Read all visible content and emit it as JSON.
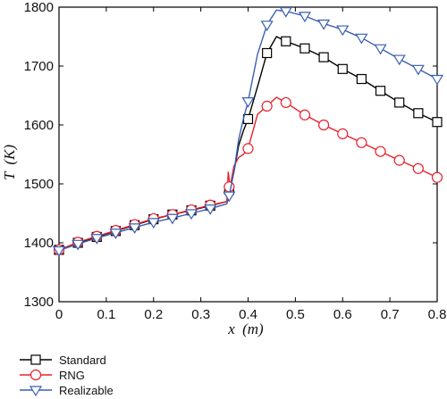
{
  "chart_data": {
    "type": "line",
    "title": "",
    "xlabel": "x",
    "xlabel_unit": "(m)",
    "ylabel": "T",
    "ylabel_unit": "(K)",
    "xlim": [
      0,
      0.8
    ],
    "ylim": [
      1300,
      1800
    ],
    "xticks": [
      "0",
      "0.1",
      "0.2",
      "0.3",
      "0.4",
      "0.5",
      "0.6",
      "0.7",
      "0.8"
    ],
    "yticks": [
      "1300",
      "1400",
      "1500",
      "1600",
      "1700",
      "1800"
    ],
    "grid": false,
    "legend_position": "bottom-left",
    "series": [
      {
        "name": "Standard",
        "color": "#000000",
        "marker": "square",
        "x": [
          0,
          0.04,
          0.08,
          0.12,
          0.16,
          0.2,
          0.24,
          0.28,
          0.32,
          0.355,
          0.36,
          0.37,
          0.38,
          0.39,
          0.4,
          0.42,
          0.44,
          0.46,
          0.48,
          0.52,
          0.56,
          0.6,
          0.64,
          0.68,
          0.72,
          0.76,
          0.8
        ],
        "y": [
          1388,
          1400,
          1410,
          1420,
          1430,
          1440,
          1448,
          1455,
          1463,
          1470,
          1490,
          1520,
          1565,
          1590,
          1610,
          1665,
          1722,
          1750,
          1742,
          1730,
          1715,
          1695,
          1678,
          1658,
          1638,
          1620,
          1605
        ],
        "markers_x": [
          0,
          0.04,
          0.08,
          0.12,
          0.16,
          0.2,
          0.24,
          0.28,
          0.32,
          0.36,
          0.4,
          0.44,
          0.48,
          0.52,
          0.56,
          0.6,
          0.64,
          0.68,
          0.72,
          0.76,
          0.8
        ],
        "markers_y": [
          1388,
          1400,
          1410,
          1420,
          1430,
          1440,
          1448,
          1455,
          1463,
          1490,
          1610,
          1722,
          1742,
          1730,
          1715,
          1695,
          1678,
          1658,
          1638,
          1620,
          1605
        ]
      },
      {
        "name": "RNG",
        "color": "#e8202a",
        "marker": "circle",
        "x": [
          0,
          0.04,
          0.08,
          0.12,
          0.16,
          0.2,
          0.24,
          0.28,
          0.32,
          0.355,
          0.358,
          0.362,
          0.37,
          0.38,
          0.39,
          0.4,
          0.42,
          0.44,
          0.46,
          0.48,
          0.52,
          0.56,
          0.6,
          0.64,
          0.68,
          0.72,
          0.76,
          0.8
        ],
        "y": [
          1388,
          1401,
          1411,
          1421,
          1431,
          1441,
          1448,
          1456,
          1464,
          1470,
          1520,
          1495,
          1530,
          1545,
          1550,
          1560,
          1618,
          1632,
          1647,
          1638,
          1617,
          1600,
          1585,
          1570,
          1555,
          1540,
          1526,
          1511
        ],
        "markers_x": [
          0,
          0.04,
          0.08,
          0.12,
          0.16,
          0.2,
          0.24,
          0.28,
          0.32,
          0.36,
          0.4,
          0.44,
          0.48,
          0.52,
          0.56,
          0.6,
          0.64,
          0.68,
          0.72,
          0.76,
          0.8
        ],
        "markers_y": [
          1388,
          1401,
          1411,
          1421,
          1431,
          1441,
          1448,
          1456,
          1464,
          1495,
          1560,
          1632,
          1638,
          1617,
          1600,
          1585,
          1570,
          1555,
          1540,
          1526,
          1511
        ]
      },
      {
        "name": "Realizable",
        "color": "#3a5fb0",
        "marker": "triangle-down",
        "x": [
          0,
          0.04,
          0.08,
          0.12,
          0.16,
          0.2,
          0.24,
          0.28,
          0.32,
          0.355,
          0.36,
          0.37,
          0.38,
          0.39,
          0.4,
          0.42,
          0.44,
          0.46,
          0.48,
          0.52,
          0.56,
          0.6,
          0.64,
          0.68,
          0.72,
          0.76,
          0.8
        ],
        "y": [
          1387,
          1398,
          1408,
          1417,
          1426,
          1435,
          1442,
          1450,
          1458,
          1466,
          1480,
          1520,
          1575,
          1610,
          1640,
          1720,
          1770,
          1795,
          1793,
          1785,
          1772,
          1762,
          1748,
          1730,
          1712,
          1695,
          1678
        ],
        "markers_x": [
          0,
          0.04,
          0.08,
          0.12,
          0.16,
          0.2,
          0.24,
          0.28,
          0.32,
          0.36,
          0.4,
          0.44,
          0.48,
          0.52,
          0.56,
          0.6,
          0.64,
          0.68,
          0.72,
          0.76,
          0.8
        ],
        "markers_y": [
          1387,
          1398,
          1408,
          1417,
          1426,
          1435,
          1442,
          1450,
          1458,
          1480,
          1640,
          1770,
          1793,
          1785,
          1772,
          1762,
          1748,
          1730,
          1712,
          1695,
          1678
        ]
      }
    ]
  }
}
